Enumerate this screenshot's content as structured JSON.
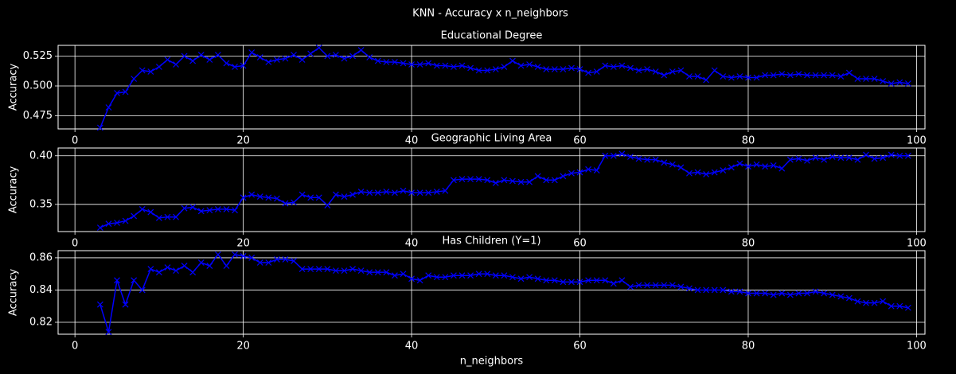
{
  "title": "KNN - Accuracy x n_neighbors",
  "chart_data": [
    {
      "type": "line",
      "title": "Educational Degree",
      "ylabel": "Accuracy",
      "color": "#0000ff",
      "marker": "x",
      "grid": true,
      "xlim": [
        -2,
        101
      ],
      "xticks": [
        0,
        20,
        40,
        60,
        80,
        100
      ],
      "ylim": [
        0.464,
        0.534
      ],
      "yticks": [
        0.475,
        {
          "value": 0.5,
          "label": "0.500"
        },
        0.525
      ],
      "x": [
        3,
        4,
        5,
        6,
        7,
        8,
        9,
        10,
        11,
        12,
        13,
        14,
        15,
        16,
        17,
        18,
        19,
        20,
        21,
        22,
        23,
        24,
        25,
        26,
        27,
        28,
        29,
        30,
        31,
        32,
        33,
        34,
        35,
        36,
        37,
        38,
        39,
        40,
        41,
        42,
        43,
        44,
        45,
        46,
        47,
        48,
        49,
        50,
        51,
        52,
        53,
        54,
        55,
        56,
        57,
        58,
        59,
        60,
        61,
        62,
        63,
        64,
        65,
        66,
        67,
        68,
        69,
        70,
        71,
        72,
        73,
        74,
        75,
        76,
        77,
        78,
        79,
        80,
        81,
        82,
        83,
        84,
        85,
        86,
        87,
        88,
        89,
        90,
        91,
        92,
        93,
        94,
        95,
        96,
        97,
        98,
        99
      ],
      "values": [
        0.465,
        0.482,
        0.494,
        0.495,
        0.506,
        0.513,
        0.512,
        0.516,
        0.522,
        0.518,
        0.525,
        0.521,
        0.526,
        0.522,
        0.526,
        0.519,
        0.516,
        0.517,
        0.528,
        0.524,
        0.52,
        0.522,
        0.523,
        0.526,
        0.522,
        0.527,
        0.532,
        0.525,
        0.526,
        0.523,
        0.525,
        0.53,
        0.524,
        0.521,
        0.52,
        0.52,
        0.519,
        0.518,
        0.518,
        0.519,
        0.517,
        0.517,
        0.516,
        0.517,
        0.515,
        0.513,
        0.513,
        0.514,
        0.516,
        0.521,
        0.517,
        0.518,
        0.516,
        0.514,
        0.514,
        0.514,
        0.515,
        0.514,
        0.511,
        0.512,
        0.517,
        0.516,
        0.517,
        0.515,
        0.513,
        0.514,
        0.512,
        0.509,
        0.512,
        0.513,
        0.508,
        0.508,
        0.505,
        0.513,
        0.508,
        0.507,
        0.508,
        0.507,
        0.507,
        0.509,
        0.509,
        0.51,
        0.509,
        0.51,
        0.509,
        0.509,
        0.509,
        0.509,
        0.508,
        0.511,
        0.506,
        0.506,
        0.506,
        0.504,
        0.502,
        0.503,
        0.502
      ]
    },
    {
      "type": "line",
      "title": "Geographic Living Area",
      "ylabel": "Accuracy",
      "color": "#0000ff",
      "marker": "x",
      "grid": true,
      "xlim": [
        -2,
        101
      ],
      "xticks": [
        0,
        20,
        40,
        60,
        80,
        100
      ],
      "ylim": [
        0.322,
        0.408
      ],
      "yticks": [
        0.35,
        {
          "value": 0.4,
          "label": "0.40"
        }
      ],
      "x": [
        3,
        4,
        5,
        6,
        7,
        8,
        9,
        10,
        11,
        12,
        13,
        14,
        15,
        16,
        17,
        18,
        19,
        20,
        21,
        22,
        23,
        24,
        25,
        26,
        27,
        28,
        29,
        30,
        31,
        32,
        33,
        34,
        35,
        36,
        37,
        38,
        39,
        40,
        41,
        42,
        43,
        44,
        45,
        46,
        47,
        48,
        49,
        50,
        51,
        52,
        53,
        54,
        55,
        56,
        57,
        58,
        59,
        60,
        61,
        62,
        63,
        64,
        65,
        66,
        67,
        68,
        69,
        70,
        71,
        72,
        73,
        74,
        75,
        76,
        77,
        78,
        79,
        80,
        81,
        82,
        83,
        84,
        85,
        86,
        87,
        88,
        89,
        90,
        91,
        92,
        93,
        94,
        95,
        96,
        97,
        98,
        99
      ],
      "values": [
        0.326,
        0.33,
        0.331,
        0.333,
        0.338,
        0.345,
        0.342,
        0.336,
        0.337,
        0.337,
        0.346,
        0.347,
        0.343,
        0.344,
        0.345,
        0.345,
        0.344,
        0.357,
        0.36,
        0.358,
        0.357,
        0.356,
        0.351,
        0.352,
        0.36,
        0.357,
        0.357,
        0.349,
        0.36,
        0.358,
        0.36,
        0.363,
        0.362,
        0.362,
        0.363,
        0.362,
        0.364,
        0.362,
        0.362,
        0.362,
        0.363,
        0.364,
        0.375,
        0.376,
        0.376,
        0.376,
        0.375,
        0.372,
        0.375,
        0.374,
        0.373,
        0.373,
        0.379,
        0.375,
        0.375,
        0.379,
        0.382,
        0.383,
        0.386,
        0.385,
        0.4,
        0.4,
        0.402,
        0.399,
        0.397,
        0.396,
        0.396,
        0.393,
        0.391,
        0.388,
        0.382,
        0.383,
        0.381,
        0.383,
        0.385,
        0.388,
        0.392,
        0.389,
        0.391,
        0.389,
        0.39,
        0.387,
        0.396,
        0.397,
        0.395,
        0.398,
        0.396,
        0.399,
        0.398,
        0.398,
        0.396,
        0.401,
        0.397,
        0.398,
        0.401,
        0.4,
        0.4
      ]
    },
    {
      "type": "line",
      "title": "Has Children (Y=1)",
      "ylabel": "Accuracy",
      "xlabel": "n_neighbors",
      "color": "#0000ff",
      "marker": "x",
      "grid": true,
      "xlim": [
        -2,
        101
      ],
      "xticks": [
        0,
        20,
        40,
        60,
        80,
        100
      ],
      "ylim": [
        0.8126,
        0.8644
      ],
      "yticks": [
        0.82,
        0.84,
        0.86
      ],
      "x": [
        3,
        4,
        5,
        6,
        7,
        8,
        9,
        10,
        11,
        12,
        13,
        14,
        15,
        16,
        17,
        18,
        19,
        20,
        21,
        22,
        23,
        24,
        25,
        26,
        27,
        28,
        29,
        30,
        31,
        32,
        33,
        34,
        35,
        36,
        37,
        38,
        39,
        40,
        41,
        42,
        43,
        44,
        45,
        46,
        47,
        48,
        49,
        50,
        51,
        52,
        53,
        54,
        55,
        56,
        57,
        58,
        59,
        60,
        61,
        62,
        63,
        64,
        65,
        66,
        67,
        68,
        69,
        70,
        71,
        72,
        73,
        74,
        75,
        76,
        77,
        78,
        79,
        80,
        81,
        82,
        83,
        84,
        85,
        86,
        87,
        88,
        89,
        90,
        91,
        92,
        93,
        94,
        95,
        96,
        97,
        98,
        99
      ],
      "values": [
        0.831,
        0.814,
        0.846,
        0.831,
        0.846,
        0.84,
        0.853,
        0.851,
        0.854,
        0.852,
        0.855,
        0.851,
        0.857,
        0.855,
        0.862,
        0.855,
        0.862,
        0.861,
        0.86,
        0.857,
        0.857,
        0.859,
        0.859,
        0.858,
        0.853,
        0.853,
        0.853,
        0.853,
        0.852,
        0.852,
        0.853,
        0.852,
        0.851,
        0.851,
        0.851,
        0.849,
        0.85,
        0.847,
        0.846,
        0.849,
        0.848,
        0.848,
        0.849,
        0.849,
        0.849,
        0.85,
        0.85,
        0.849,
        0.849,
        0.848,
        0.847,
        0.848,
        0.847,
        0.846,
        0.846,
        0.845,
        0.845,
        0.845,
        0.846,
        0.846,
        0.846,
        0.844,
        0.846,
        0.842,
        0.843,
        0.843,
        0.843,
        0.843,
        0.843,
        0.842,
        0.841,
        0.84,
        0.84,
        0.84,
        0.84,
        0.839,
        0.839,
        0.838,
        0.838,
        0.838,
        0.837,
        0.838,
        0.837,
        0.838,
        0.838,
        0.839,
        0.838,
        0.837,
        0.836,
        0.835,
        0.833,
        0.832,
        0.832,
        0.833,
        0.83,
        0.83,
        0.829
      ]
    }
  ]
}
